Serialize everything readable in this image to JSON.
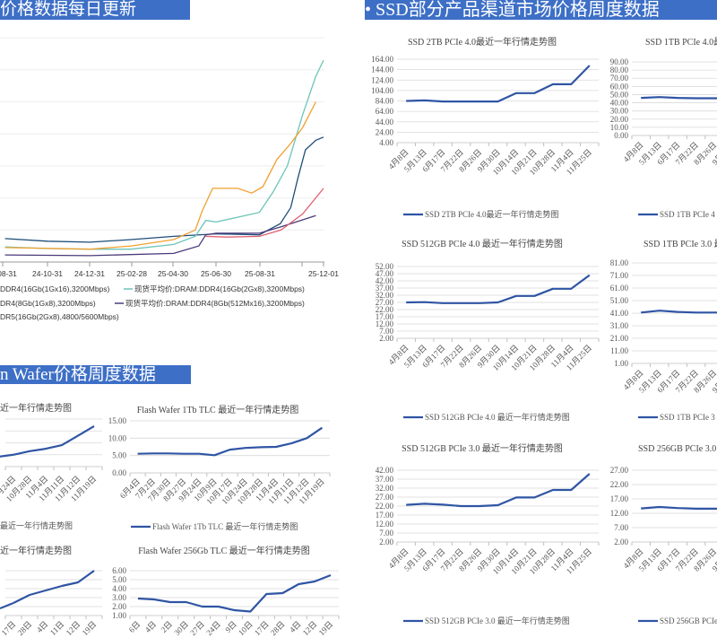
{
  "headers": {
    "dram": "价格数据每日更新",
    "ssd": "•   SSD部分产品渠道市场价格周度数据",
    "wafer": "n Wafer价格周度数据"
  },
  "colors": {
    "header": "#3d6fc6",
    "line": "#2f55a4",
    "grid": "#d9d9d9"
  },
  "chart_data": [
    {
      "id": "dram",
      "type": "line",
      "x_ticks": [
        "08-31",
        "24-10-31",
        "24-12-31",
        "25-02-28",
        "25-04-30",
        "25-06-30",
        "25-08-31",
        "25-12-01"
      ],
      "ylim": [
        0,
        7
      ],
      "grid": true,
      "legend_placement": "bottom",
      "legend_lines": [
        [
          "DDR4(16Gb(1Gx16),3200Mbps)",
          "现货平均价:DRAM:DDR4(16Gb(2Gx8),3200Mbps)"
        ],
        [
          "DR4(8Gb(1Gx8),3200Mbps)",
          "现货平均价:DRAM:DDR4(8Gb(512Mx16),3200Mbps)"
        ],
        [
          "DR5(16Gb(2Gx8),4800/5600Mbps)"
        ]
      ],
      "series": [
        {
          "name": "DDR4(16Gb(1Gx16),3200Mbps)",
          "color": "#1f4e79",
          "points": [
            [
              "2024-08-31",
              0.73
            ],
            [
              "2024-10-31",
              0.65
            ],
            [
              "2024-12-31",
              0.62
            ],
            [
              "2025-02-28",
              0.7
            ],
            [
              "2025-04-30",
              0.8
            ],
            [
              "2025-06-30",
              0.88
            ],
            [
              "2025-08-31",
              0.85
            ],
            [
              "2025-09-30",
              1.2
            ],
            [
              "2025-10-15",
              1.7
            ],
            [
              "2025-10-25",
              2.6
            ],
            [
              "2025-11-05",
              3.5
            ],
            [
              "2025-11-20",
              3.8
            ],
            [
              "2025-12-01",
              3.9
            ]
          ]
        },
        {
          "name": "现货平均价:DRAM:DDR4(16Gb(2Gx8),3200Mbps)",
          "color": "#6cc4b8",
          "points": [
            [
              "2024-08-31",
              0.47
            ],
            [
              "2024-10-31",
              0.42
            ],
            [
              "2024-12-31",
              0.4
            ],
            [
              "2025-02-28",
              0.4
            ],
            [
              "2025-04-30",
              0.55
            ],
            [
              "2025-05-31",
              0.8
            ],
            [
              "2025-06-15",
              1.3
            ],
            [
              "2025-06-30",
              1.25
            ],
            [
              "2025-08-31",
              1.55
            ],
            [
              "2025-09-20",
              2.2
            ],
            [
              "2025-10-10",
              3.0
            ],
            [
              "2025-11-01",
              4.6
            ],
            [
              "2025-11-20",
              5.8
            ],
            [
              "2025-12-01",
              6.3
            ]
          ]
        },
        {
          "name": "DR4(8Gb(1Gx8),3200Mbps)",
          "color": "#f0a030",
          "points": [
            [
              "2024-08-31",
              0.45
            ],
            [
              "2024-12-31",
              0.4
            ],
            [
              "2025-02-28",
              0.5
            ],
            [
              "2025-04-30",
              0.7
            ],
            [
              "2025-05-31",
              1.0
            ],
            [
              "2025-06-10",
              1.6
            ],
            [
              "2025-06-25",
              2.3
            ],
            [
              "2025-07-31",
              2.3
            ],
            [
              "2025-08-20",
              2.15
            ],
            [
              "2025-09-05",
              2.35
            ],
            [
              "2025-09-25",
              3.2
            ],
            [
              "2025-10-15",
              3.7
            ],
            [
              "2025-11-01",
              4.2
            ],
            [
              "2025-11-20",
              5.0
            ]
          ]
        },
        {
          "name": "现货平均价:DRAM:DDR4(8Gb(512Mx16),3200Mbps)",
          "color": "#4a3a7a",
          "points": [
            [
              "2024-08-31",
              0.22
            ],
            [
              "2024-12-31",
              0.2
            ],
            [
              "2025-04-30",
              0.27
            ],
            [
              "2025-06-05",
              0.5
            ],
            [
              "2025-06-15",
              0.85
            ],
            [
              "2025-06-30",
              0.9
            ],
            [
              "2025-08-31",
              0.9
            ],
            [
              "2025-10-01",
              1.1
            ],
            [
              "2025-11-20",
              1.45
            ]
          ]
        },
        {
          "name": "DR5(16Gb(2Gx8),4800/5600Mbps)",
          "color": "#e06070",
          "points": [
            [
              "2025-06-15",
              0.8
            ],
            [
              "2025-07-15",
              0.78
            ],
            [
              "2025-08-31",
              0.8
            ],
            [
              "2025-10-01",
              1.0
            ],
            [
              "2025-11-01",
              1.5
            ],
            [
              "2025-12-01",
              2.3
            ]
          ]
        }
      ]
    },
    {
      "id": "ssd2tb4",
      "type": "line",
      "title": "SSD 2TB PCIe 4.0最近一年行情走势图",
      "legend": "SSD 2TB PCIe 4.0最近一年行情走势图",
      "yticks": [
        "164.00",
        "144.00",
        "124.00",
        "104.00",
        "84.00",
        "64.00",
        "44.00",
        "24.00",
        "4.00"
      ],
      "categories": [
        "4月8日",
        "5月13日",
        "6月17日",
        "7月22日",
        "8月26日",
        "9月30日",
        "10月14日",
        "10月21日",
        "10月28日",
        "11月4日",
        "11月25日"
      ],
      "values": [
        84,
        85,
        83,
        83,
        83,
        83,
        99,
        99,
        116,
        116,
        152
      ]
    },
    {
      "id": "ssd512g4",
      "type": "line",
      "title": "SSD 512GB PCIe 4.0 最近一年行情走势图",
      "legend": "SSD 512GB PCIe 4.0 最近一年行情走势图",
      "yticks": [
        "52.00",
        "47.00",
        "42.00",
        "37.00",
        "32.00",
        "27.00",
        "22.00",
        "17.00",
        "12.00",
        "7.00",
        "2.00"
      ],
      "categories": [
        "4月8日",
        "5月13日",
        "6月17日",
        "7月22日",
        "8月26日",
        "9月30日",
        "10月14日",
        "10月21日",
        "10月28日",
        "11月4日",
        "11月25日"
      ],
      "values": [
        27,
        27.2,
        26.5,
        26.5,
        26.5,
        27,
        31.5,
        31.5,
        36.5,
        36.5,
        46
      ]
    },
    {
      "id": "ssd512g3",
      "type": "line",
      "title": "SSD 512GB PCIe 3.0 最近一年行情走势图",
      "legend": "SSD 512GB PCIe 3.0 最近一年行情走势图",
      "yticks": [
        "42.00",
        "37.00",
        "32.00",
        "27.00",
        "22.00",
        "17.00",
        "12.00",
        "7.00",
        "2.00"
      ],
      "categories": [
        "4月8日",
        "5月13日",
        "6月17日",
        "7月22日",
        "8月26日",
        "9月30日",
        "10月14日",
        "10月21日",
        "10月28日",
        "11月4日",
        "11月25日"
      ],
      "values": [
        22.7,
        23.3,
        22.8,
        22,
        22,
        22.5,
        26.8,
        26.8,
        31,
        31,
        40
      ]
    },
    {
      "id": "ssd1tb4",
      "type": "line",
      "title": "SSD 1TB PCIe 4.0最",
      "legend": "SSD 1TB PCIe 4",
      "yticks": [
        "90.00",
        "80.00",
        "70.00",
        "60.00",
        "50.00",
        "40.00",
        "30.00",
        "20.00",
        "10.00",
        "0.00"
      ],
      "categories": [
        "4月8日",
        "5月13日",
        "6月17日",
        "7月22日",
        "8月26日",
        "9月30日"
      ],
      "values": [
        46,
        47,
        46,
        45.5,
        45.5,
        45.5
      ]
    },
    {
      "id": "ssd1tb3",
      "type": "line",
      "title": "SSD 1TB PCIe 3.0 最",
      "legend": "SSD 1TB PCIe 3",
      "yticks": [
        "81.00",
        "71.00",
        "61.00",
        "51.00",
        "41.00",
        "31.00",
        "21.00",
        "11.00",
        "1.00"
      ],
      "categories": [
        "4月8日",
        "5月13日",
        "6月17日",
        "7月22日",
        "8月26日",
        "9月30日"
      ],
      "values": [
        41.5,
        43,
        42,
        41.5,
        41.5,
        41.5
      ]
    },
    {
      "id": "ssd256g3",
      "type": "line",
      "title": "SSD 256GB PCIe 3.0",
      "legend": "SSD 256GB PCIe",
      "yticks": [
        "27.00",
        "22.00",
        "17.00",
        "12.00",
        "7.00",
        "2.00"
      ],
      "categories": [
        "4月8日",
        "5月13日",
        "6月17日",
        "7月22日",
        "8月26日",
        "9月30日"
      ],
      "values": [
        13.7,
        14.2,
        13.8,
        13.6,
        13.6,
        13.6
      ]
    },
    {
      "id": "waferL1",
      "type": "line",
      "title": "近一年行情走势图",
      "legend": "最近一年行情走势图",
      "ylim": [
        0,
        4
      ],
      "categories": [
        "月24日",
        "10月28日",
        "11月4日",
        "11月11日",
        "11月12日",
        "11月19日"
      ],
      "values": [
        1.0,
        1.3,
        1.5,
        1.8,
        2.6,
        3.4
      ]
    },
    {
      "id": "wafer1tb",
      "type": "line",
      "title": "Flash Wafer 1Tb TLC 最近一年行情走势图",
      "legend": "Flash Wafer 1Tb TLC 最近一年行情走势图",
      "yticks": [
        "15.00",
        "10.00",
        "5.00",
        "0.00"
      ],
      "categories": [
        "6月4日",
        "7月2日",
        "7月30日",
        "8月27日",
        "9月24日",
        "10月9日",
        "10月17日",
        "10月24日",
        "10月28日",
        "11月4日",
        "11月11日",
        "11月12日",
        "11月19日"
      ],
      "values": [
        5.5,
        5.6,
        5.6,
        5.5,
        5.5,
        5.1,
        6.7,
        7.2,
        7.4,
        7.5,
        8.5,
        10,
        13
      ]
    },
    {
      "id": "waferL2",
      "type": "line",
      "title": "近一年行情走势图",
      "ylim": [
        1,
        6
      ],
      "categories": [
        "17日",
        "28日",
        "4日",
        "11日",
        "12日",
        "19日"
      ],
      "values": [
        2.4,
        3.3,
        3.8,
        4.3,
        4.7,
        6.0
      ]
    },
    {
      "id": "wafer256",
      "type": "line",
      "title": "Flash Wafer 256Gb TLC 最近一年行情走势图",
      "yticks": [
        "6.00",
        "5.00",
        "4.00",
        "3.00",
        "2.00",
        "1.00"
      ],
      "categories": [
        "6日",
        "4日",
        "2日",
        "30日",
        "27日",
        "24日",
        "9日",
        "10日",
        "17日",
        "28日",
        "4日",
        "12日",
        "19日"
      ],
      "values": [
        2.9,
        2.8,
        2.5,
        2.5,
        2.0,
        2.0,
        1.6,
        1.45,
        3.4,
        3.5,
        4.5,
        4.8,
        5.5
      ]
    }
  ]
}
